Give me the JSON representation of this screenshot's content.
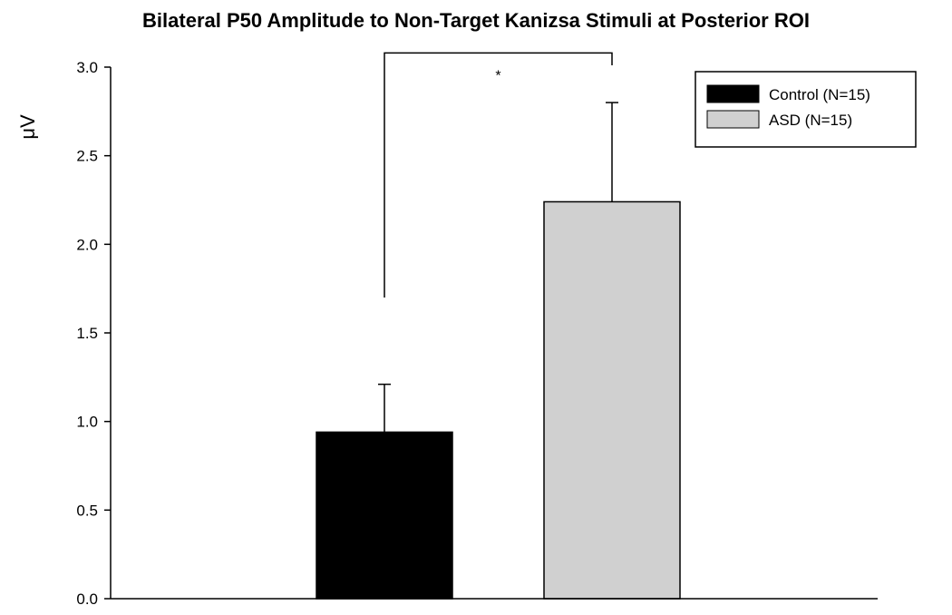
{
  "chart_data": {
    "type": "bar",
    "title": "Bilateral P50 Amplitude to Non-Target Kanizsa Stimuli at Posterior ROI",
    "xlabel": "",
    "ylabel": "μV",
    "ylim": [
      0,
      3.0
    ],
    "yticks": [
      "0.0",
      "0.5",
      "1.0",
      "1.5",
      "2.0",
      "2.5",
      "3.0"
    ],
    "grid": false,
    "legend_position": "top-right",
    "series": [
      {
        "name": "Control (N=15)",
        "value": 0.94,
        "error": 0.27,
        "color": "#000000"
      },
      {
        "name": "ASD (N=15)",
        "value": 2.24,
        "error": 0.56,
        "color": "#d0d0d0"
      }
    ],
    "annotations": [
      {
        "text": "*",
        "type": "significance-bracket",
        "between": [
          "Control (N=15)",
          "ASD (N=15)"
        ],
        "level": 3.08
      }
    ]
  }
}
